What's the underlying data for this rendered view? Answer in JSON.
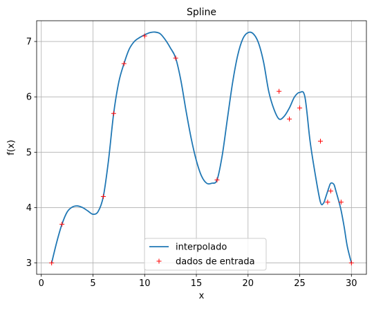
{
  "chart_data": {
    "type": "line",
    "title": "Spline",
    "xlabel": "x",
    "ylabel": "f(x)",
    "xlim": [
      -0.45,
      31.45
    ],
    "ylim": [
      2.795,
      7.375
    ],
    "xticks": [
      0,
      5,
      10,
      15,
      20,
      25,
      30
    ],
    "yticks": [
      3,
      4,
      5,
      6,
      7
    ],
    "grid": true,
    "legend_position": "lower-center",
    "series": [
      {
        "name": "interpolado",
        "kind": "line",
        "color": "#1f77b4",
        "x": [
          1,
          1.5,
          2,
          2.5,
          3,
          3.5,
          4,
          4.5,
          5,
          5.5,
          6,
          6.5,
          7,
          7.5,
          8,
          8.5,
          9,
          9.5,
          10,
          10.5,
          11,
          11.5,
          12,
          12.5,
          13,
          13.5,
          14,
          14.5,
          15,
          15.5,
          16,
          16.5,
          17,
          17.5,
          18,
          18.5,
          19,
          19.5,
          20,
          20.5,
          21,
          21.5,
          22,
          22.5,
          23,
          23.5,
          24,
          24.5,
          25,
          25.5,
          26,
          26.5,
          27,
          27.3,
          27.5,
          27.8,
          28,
          28.3,
          28.5,
          28.8,
          29,
          29.3,
          29.6,
          30
        ],
        "y": [
          3.0,
          3.38,
          3.7,
          3.92,
          4.01,
          4.03,
          4.0,
          3.94,
          3.88,
          3.93,
          4.2,
          4.85,
          5.7,
          6.27,
          6.6,
          6.86,
          7.0,
          7.07,
          7.12,
          7.16,
          7.17,
          7.14,
          7.03,
          6.88,
          6.7,
          6.3,
          5.75,
          5.25,
          4.85,
          4.57,
          4.44,
          4.44,
          4.5,
          4.94,
          5.6,
          6.25,
          6.75,
          7.05,
          7.16,
          7.14,
          6.98,
          6.63,
          6.1,
          5.78,
          5.6,
          5.65,
          5.8,
          6.0,
          6.08,
          6.0,
          5.2,
          4.6,
          4.1,
          4.08,
          4.18,
          4.35,
          4.44,
          4.42,
          4.3,
          4.1,
          3.95,
          3.65,
          3.3,
          3.0
        ]
      },
      {
        "name": "dados de entrada",
        "kind": "scatter",
        "marker": "+",
        "color": "#ff0000",
        "x": [
          1,
          2,
          6,
          7,
          8,
          10,
          13,
          17,
          23,
          24,
          25,
          27,
          27.7,
          28,
          29,
          30
        ],
        "y": [
          3.0,
          3.7,
          4.2,
          5.7,
          6.6,
          7.1,
          6.7,
          4.5,
          6.1,
          5.6,
          5.8,
          5.2,
          4.1,
          4.3,
          4.1,
          3.0
        ]
      }
    ]
  }
}
